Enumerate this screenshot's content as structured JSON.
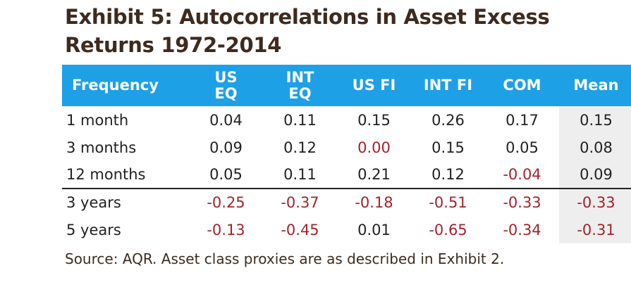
{
  "title": "Exhibit 5: Autocorrelations in Asset Excess Returns 1972-2014",
  "table": {
    "headers": [
      "Frequency",
      "US EQ",
      "INT EQ",
      "US FI",
      "INT FI",
      "COM",
      "Mean"
    ],
    "rows": [
      {
        "cells": [
          "1 month",
          "0.04",
          "0.11",
          "0.15",
          "0.26",
          "0.17",
          "0.15"
        ]
      },
      {
        "cells": [
          "3 months",
          "0.09",
          "0.12",
          "0.00",
          "0.15",
          "0.05",
          "0.08"
        ]
      },
      {
        "cells": [
          "12 months",
          "0.05",
          "0.11",
          "0.21",
          "0.12",
          "-0.04",
          "0.09"
        ]
      },
      {
        "cells": [
          "3 years",
          "-0.25",
          "-0.37",
          "-0.18",
          "-0.51",
          "-0.33",
          "-0.33"
        ]
      },
      {
        "cells": [
          "5 years",
          "-0.13",
          "-0.45",
          "0.01",
          "-0.65",
          "-0.34",
          "-0.31"
        ]
      }
    ],
    "highlight_cells": [
      [
        1,
        3
      ]
    ]
  },
  "source": "Source: AQR. Asset class proxies are as described in Exhibit 2.",
  "colors": {
    "header_bg": "#1ea0e6",
    "negative": "#a3232f",
    "title": "#3d2b1f",
    "mean_column_bg": "#eeeeee"
  }
}
